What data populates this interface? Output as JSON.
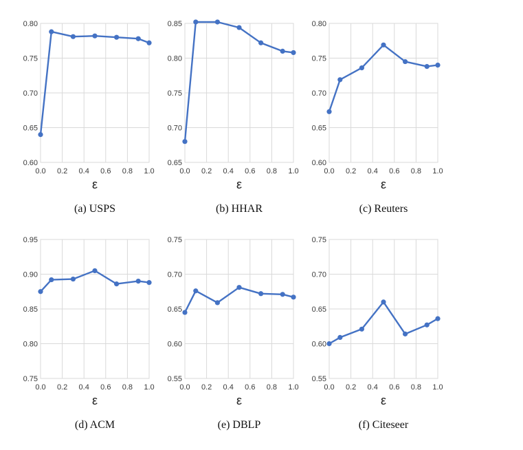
{
  "colors": {
    "series": "#4472c4",
    "grid": "#d9d9d9",
    "text": "#3a3a3a"
  },
  "chart_data": [
    {
      "type": "line",
      "caption": "(a)  USPS",
      "xlabel": "ε",
      "x": [
        0.0,
        0.1,
        0.3,
        0.5,
        0.7,
        0.9,
        1.0
      ],
      "values": [
        0.64,
        0.788,
        0.781,
        0.782,
        0.78,
        0.778,
        0.772
      ],
      "ylim": [
        0.6,
        0.8
      ],
      "yticks": [
        "0.60",
        "0.65",
        "0.70",
        "0.75",
        "0.80"
      ],
      "xticks": [
        "0.0",
        "0.2",
        "0.4",
        "0.6",
        "0.8",
        "1.0"
      ],
      "grid": true
    },
    {
      "type": "line",
      "caption": "(b)  HHAR",
      "xlabel": "ε",
      "x": [
        0.0,
        0.1,
        0.3,
        0.5,
        0.7,
        0.9,
        1.0
      ],
      "values": [
        0.68,
        0.852,
        0.852,
        0.844,
        0.822,
        0.81,
        0.808
      ],
      "ylim": [
        0.65,
        0.85
      ],
      "yticks": [
        "0.65",
        "0.70",
        "0.75",
        "0.80",
        "0.85"
      ],
      "xticks": [
        "0.0",
        "0.2",
        "0.4",
        "0.6",
        "0.8",
        "1.0"
      ],
      "grid": true
    },
    {
      "type": "line",
      "caption": "(c)  Reuters",
      "xlabel": "ε",
      "x": [
        0.0,
        0.1,
        0.3,
        0.5,
        0.7,
        0.9,
        1.0
      ],
      "values": [
        0.673,
        0.719,
        0.736,
        0.769,
        0.745,
        0.738,
        0.74
      ],
      "ylim": [
        0.6,
        0.8
      ],
      "yticks": [
        "0.60",
        "0.65",
        "0.70",
        "0.75",
        "0.80"
      ],
      "xticks": [
        "0.0",
        "0.2",
        "0.4",
        "0.6",
        "0.8",
        "1.0"
      ],
      "grid": true
    },
    {
      "type": "line",
      "caption": "(d)  ACM",
      "xlabel": "ε",
      "x": [
        0.0,
        0.1,
        0.3,
        0.5,
        0.7,
        0.9,
        1.0
      ],
      "values": [
        0.875,
        0.892,
        0.893,
        0.905,
        0.886,
        0.89,
        0.888
      ],
      "ylim": [
        0.75,
        0.95
      ],
      "yticks": [
        "0.75",
        "0.80",
        "0.85",
        "0.90",
        "0.95"
      ],
      "xticks": [
        "0.0",
        "0.2",
        "0.4",
        "0.6",
        "0.8",
        "1.0"
      ],
      "grid": true
    },
    {
      "type": "line",
      "caption": "(e)  DBLP",
      "xlabel": "ε",
      "x": [
        0.0,
        0.1,
        0.3,
        0.5,
        0.7,
        0.9,
        1.0
      ],
      "values": [
        0.645,
        0.676,
        0.659,
        0.681,
        0.672,
        0.671,
        0.667
      ],
      "ylim": [
        0.55,
        0.75
      ],
      "yticks": [
        "0.55",
        "0.60",
        "0.65",
        "0.70",
        "0.75"
      ],
      "xticks": [
        "0.0",
        "0.2",
        "0.4",
        "0.6",
        "0.8",
        "1.0"
      ],
      "grid": true
    },
    {
      "type": "line",
      "caption": "(f)  Citeseer",
      "xlabel": "ε",
      "x": [
        0.0,
        0.1,
        0.3,
        0.5,
        0.7,
        0.9,
        1.0
      ],
      "values": [
        0.6,
        0.609,
        0.621,
        0.66,
        0.614,
        0.627,
        0.636
      ],
      "ylim": [
        0.55,
        0.75
      ],
      "yticks": [
        "0.55",
        "0.60",
        "0.65",
        "0.70",
        "0.75"
      ],
      "xticks": [
        "0.0",
        "0.2",
        "0.4",
        "0.6",
        "0.8",
        "1.0"
      ],
      "grid": true
    }
  ]
}
